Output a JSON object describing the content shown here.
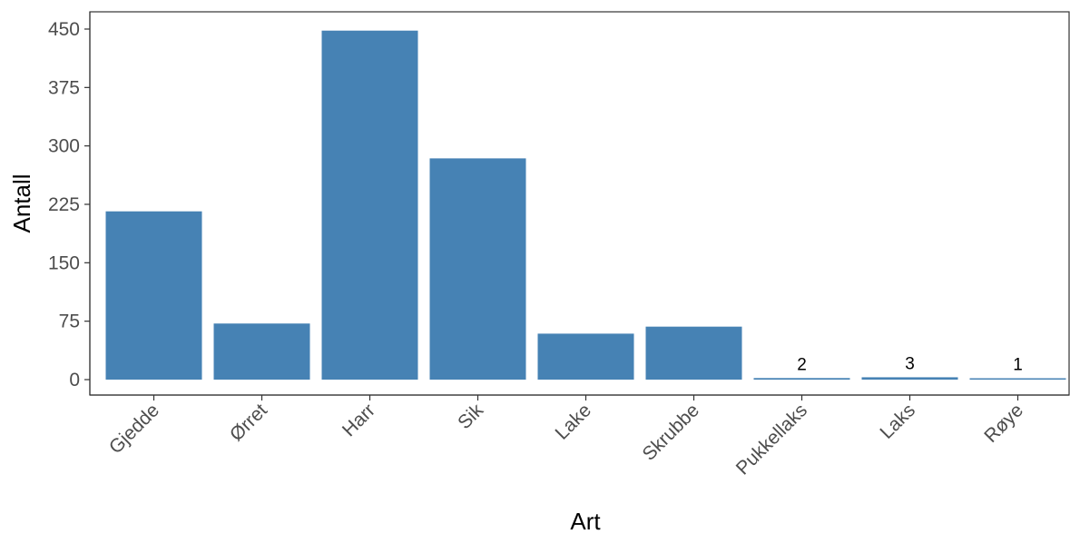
{
  "chart_data": {
    "type": "bar",
    "title": "",
    "xlabel": "Art",
    "ylabel": "Antall",
    "categories": [
      "Gjedde",
      "Ørret",
      "Harr",
      "Sik",
      "Lake",
      "Skrubbe",
      "Pukkellaks",
      "Laks",
      "Røye"
    ],
    "values": [
      216,
      72,
      448,
      284,
      59,
      68,
      2,
      3,
      1
    ],
    "data_labels": [
      "",
      "",
      "",
      "",
      "",
      "",
      "2",
      "3",
      "1"
    ],
    "yticks": [
      0,
      75,
      150,
      225,
      300,
      375,
      450
    ],
    "ytick_labels": [
      "0",
      "75",
      "150",
      "225",
      "300",
      "375",
      "450"
    ],
    "ylim": [
      -20,
      470
    ],
    "grid": false,
    "legend": false,
    "bar_color": "#4682B4"
  }
}
